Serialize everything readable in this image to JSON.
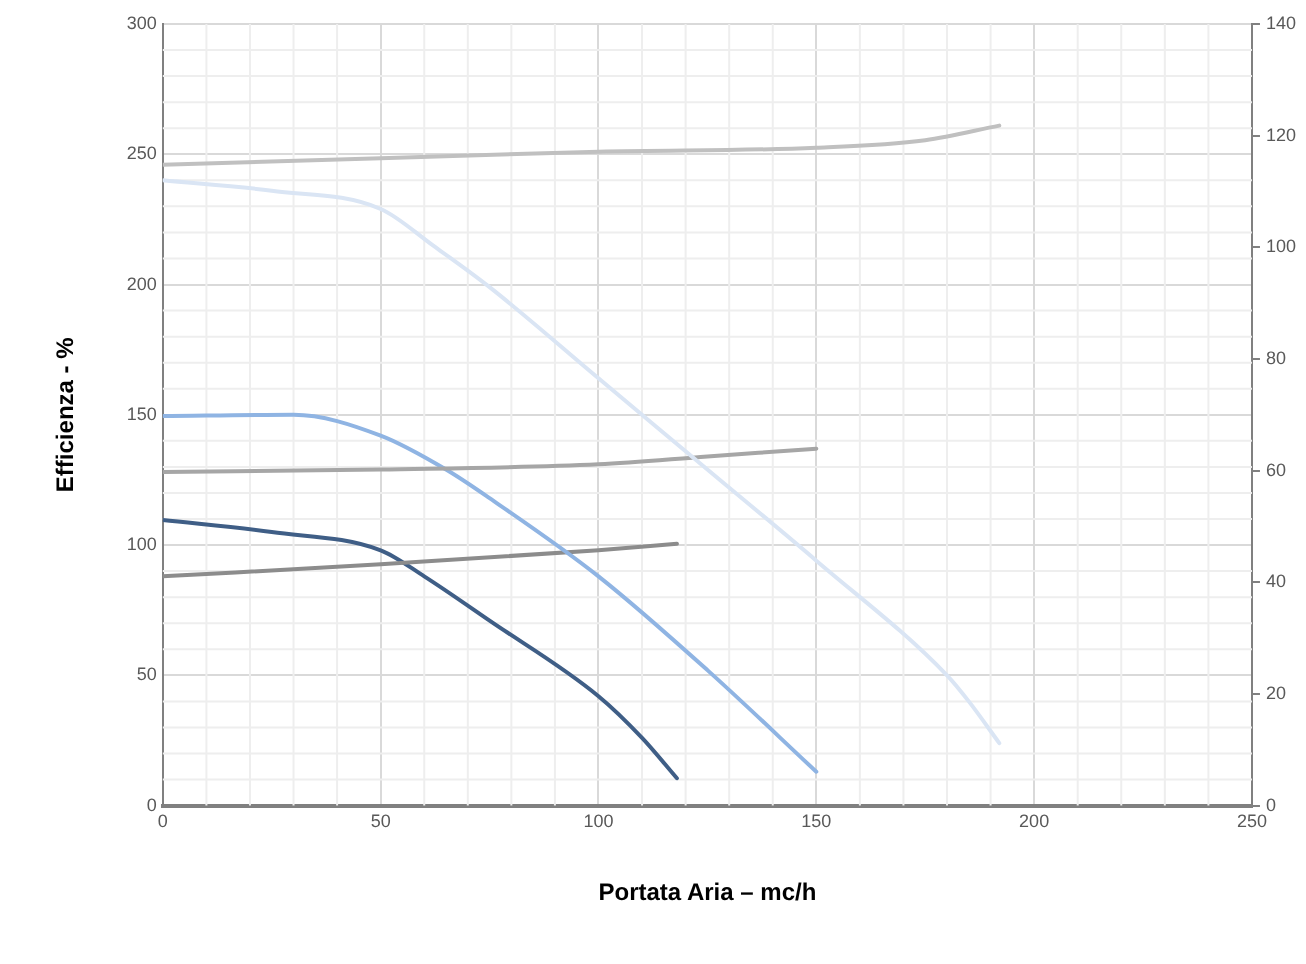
{
  "chart_data": {
    "type": "line",
    "xlabel": "Portata Aria – mc/h",
    "ylabel": "Efficienza - %",
    "xlim": [
      0,
      250
    ],
    "xticks": [
      0,
      50,
      100,
      150,
      200,
      250
    ],
    "ylim": [
      0,
      300
    ],
    "yticks": [
      0,
      50,
      100,
      150,
      200,
      250,
      300
    ],
    "y2lim": [
      0,
      140
    ],
    "y2ticks": [
      0,
      20,
      40,
      60,
      80,
      100,
      120,
      140
    ],
    "grid": true,
    "legend": false,
    "marker": "none",
    "line_style": "solid",
    "series": [
      {
        "color": "#c0c0c0",
        "x": [
          0,
          50,
          100,
          150,
          175,
          192
        ],
        "values": [
          246,
          248.5,
          251,
          252.5,
          255.4,
          261
        ]
      },
      {
        "color": "#dae5f4",
        "x": [
          0,
          25,
          50,
          62,
          75,
          100,
          125,
          150,
          180,
          185,
          192
        ],
        "values": [
          240,
          236,
          229,
          215,
          199,
          164,
          129,
          94,
          50,
          40,
          24
        ]
      },
      {
        "color": "#a6a6a6",
        "x": [
          0,
          50,
          100,
          125,
          150
        ],
        "values": [
          128,
          129,
          131,
          134,
          137
        ]
      },
      {
        "color": "#8fb4e3",
        "x": [
          0,
          30,
          50,
          65,
          75,
          100,
          125,
          150
        ],
        "values": [
          149.5,
          150,
          142,
          129,
          118,
          88,
          52,
          13
        ]
      },
      {
        "color": "#8c8c8c",
        "x": [
          0,
          50,
          100,
          118
        ],
        "values": [
          88,
          92.6,
          98,
          100.5
        ]
      },
      {
        "color": "#3f5e86",
        "x": [
          0,
          25,
          50,
          60,
          75,
          100,
          110,
          118
        ],
        "values": [
          109.6,
          105,
          98,
          88,
          71,
          42,
          26,
          10.5
        ]
      }
    ]
  }
}
